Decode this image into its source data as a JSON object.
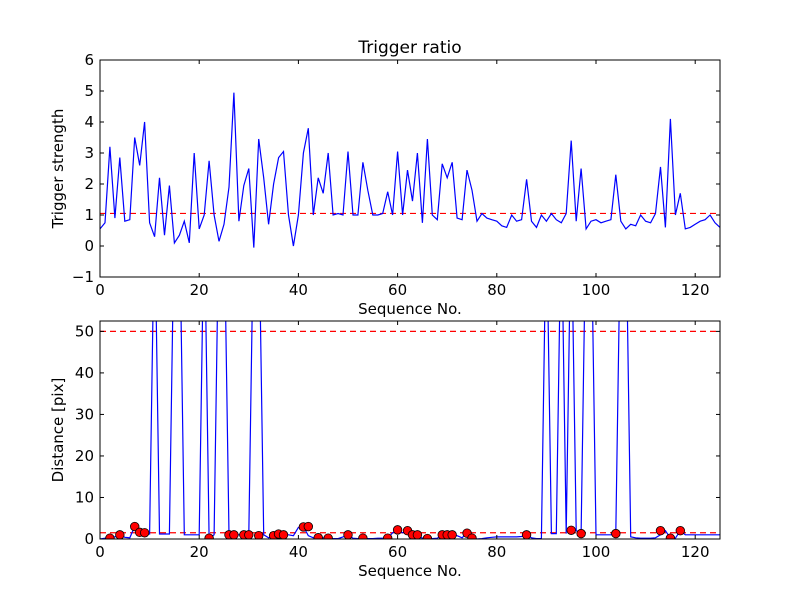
{
  "chart_data": [
    {
      "type": "line",
      "title": "Trigger ratio",
      "xlabel": "Sequence No.",
      "ylabel": "Trigger strength",
      "xlim": [
        0,
        125
      ],
      "ylim": [
        -1,
        6
      ],
      "xticks": [
        0,
        20,
        40,
        60,
        80,
        100,
        120
      ],
      "yticks": [
        -1,
        0,
        1,
        2,
        3,
        4,
        5,
        6
      ],
      "ytick_labels": [
        "−1",
        "0",
        "1",
        "2",
        "3",
        "4",
        "5",
        "6"
      ],
      "grid": false,
      "colors": {
        "series": "#0000ff",
        "reference": "#ff0000"
      },
      "reference_lines": [
        {
          "y": 1.05,
          "style": "dashed",
          "color": "#ff0000"
        }
      ],
      "series": [
        {
          "x": [
            0,
            1,
            2,
            3,
            4,
            5,
            6,
            7,
            8,
            9,
            10,
            11,
            12,
            13,
            14,
            15,
            16,
            17,
            18,
            19,
            20,
            21,
            22,
            23,
            24,
            25,
            26,
            27,
            28,
            29,
            30,
            31,
            32,
            33,
            34,
            35,
            36,
            37,
            38,
            39,
            40,
            41,
            42,
            43,
            44,
            45,
            46,
            47,
            48,
            49,
            50,
            51,
            52,
            53,
            54,
            55,
            56,
            57,
            58,
            59,
            60,
            61,
            62,
            63,
            64,
            65,
            66,
            67,
            68,
            69,
            70,
            71,
            72,
            73,
            74,
            75,
            76,
            77,
            78,
            79,
            80,
            81,
            82,
            83,
            84,
            85,
            86,
            87,
            88,
            89,
            90,
            91,
            92,
            93,
            94,
            95,
            96,
            97,
            98,
            99,
            100,
            101,
            102,
            103,
            104,
            105,
            106,
            107,
            108,
            109,
            110,
            111,
            112,
            113,
            114,
            115,
            116,
            117,
            118,
            119,
            120,
            121,
            122,
            123,
            124,
            125
          ],
          "values": [
            0.55,
            0.75,
            3.2,
            0.9,
            2.85,
            0.8,
            0.85,
            3.5,
            2.6,
            4.0,
            0.75,
            0.3,
            2.2,
            0.35,
            1.95,
            0.1,
            0.35,
            0.8,
            0.1,
            3.0,
            0.55,
            1.0,
            2.75,
            1.0,
            0.15,
            0.7,
            1.9,
            4.95,
            0.8,
            1.95,
            2.5,
            -0.05,
            3.45,
            2.2,
            0.7,
            2.0,
            2.85,
            3.05,
            1.0,
            0.0,
            1.0,
            3.0,
            3.8,
            1.0,
            2.2,
            1.7,
            3.0,
            1.0,
            1.05,
            1.0,
            3.05,
            1.0,
            1.0,
            2.7,
            1.8,
            1.0,
            1.0,
            1.05,
            1.75,
            1.0,
            3.05,
            1.0,
            2.45,
            1.45,
            3.0,
            0.75,
            3.45,
            1.0,
            0.85,
            2.65,
            2.2,
            2.7,
            0.9,
            0.85,
            2.45,
            1.8,
            0.8,
            1.05,
            0.9,
            0.85,
            0.8,
            0.65,
            0.6,
            1.0,
            0.8,
            0.85,
            2.15,
            0.8,
            0.6,
            1.0,
            0.8,
            1.05,
            0.85,
            0.75,
            1.05,
            3.4,
            0.8,
            2.5,
            0.55,
            0.8,
            0.85,
            0.75,
            0.8,
            0.85,
            2.3,
            0.8,
            0.55,
            0.7,
            0.65,
            1.0,
            0.8,
            0.75,
            1.05,
            2.55,
            0.6,
            4.1,
            1.0,
            1.7,
            0.55,
            0.6,
            0.7,
            0.8,
            0.85,
            1.0,
            0.75,
            0.6
          ]
        }
      ]
    },
    {
      "type": "line",
      "title": "",
      "xlabel": "Sequence No.",
      "ylabel": "Distance [pix]",
      "xlim": [
        0,
        125
      ],
      "ylim": [
        0,
        52.5
      ],
      "xticks": [
        0,
        20,
        40,
        60,
        80,
        100,
        120
      ],
      "yticks": [
        0,
        10,
        20,
        30,
        40,
        50
      ],
      "grid": false,
      "colors": {
        "series": "#0000ff",
        "reference": "#ff0000",
        "markers": "#ff0000"
      },
      "reference_lines": [
        {
          "y": 50,
          "style": "dashed",
          "color": "#ff0000"
        },
        {
          "y": 1.5,
          "style": "dashed",
          "color": "#ff0000"
        }
      ],
      "series": [
        {
          "x": [
            0,
            1,
            2,
            3,
            4,
            5,
            6,
            7,
            8,
            9,
            10,
            11,
            12,
            13,
            14,
            15,
            16,
            17,
            18,
            19,
            20,
            21,
            22,
            23,
            24,
            25,
            26,
            27,
            28,
            29,
            30,
            31,
            32,
            33,
            34,
            35,
            36,
            37,
            38,
            39,
            40,
            41,
            42,
            43,
            44,
            45,
            46,
            47,
            48,
            49,
            50,
            51,
            52,
            53,
            54,
            55,
            56,
            57,
            58,
            59,
            60,
            61,
            62,
            63,
            64,
            65,
            66,
            67,
            68,
            69,
            70,
            71,
            72,
            73,
            74,
            75,
            76,
            77,
            78,
            79,
            80,
            81,
            82,
            83,
            84,
            85,
            86,
            87,
            88,
            89,
            90,
            91,
            92,
            93,
            94,
            95,
            96,
            97,
            98,
            99,
            100,
            101,
            102,
            103,
            104,
            105,
            106,
            107,
            108,
            109,
            110,
            111,
            112,
            113,
            114,
            115,
            116,
            117,
            118,
            119,
            120,
            121,
            122,
            123,
            124,
            125
          ],
          "values": [
            0,
            0.2,
            0.3,
            0.5,
            1.0,
            0.4,
            0.3,
            3.0,
            1.5,
            1.4,
            1.2,
            80,
            1.2,
            1.2,
            1.2,
            80,
            80,
            1.0,
            1.0,
            1.0,
            1.0,
            80,
            0.2,
            1.0,
            80,
            80,
            1.0,
            1.0,
            1.0,
            0.9,
            1.0,
            80,
            80,
            1.0,
            0.3,
            0.8,
            1.0,
            1.0,
            1.0,
            0.8,
            2.8,
            3.0,
            0.8,
            0.3,
            0.5,
            0.3,
            0.2,
            0.1,
            0.1,
            0.5,
            1.0,
            0.2,
            0.1,
            0.2,
            0.1,
            0.1,
            0.2,
            0.2,
            0.2,
            1.5,
            2.2,
            1.5,
            2.0,
            1.0,
            0.8,
            0.2,
            0.1,
            0.1,
            0.2,
            1.0,
            1.0,
            1.0,
            0.8,
            0.3,
            1.5,
            0.1,
            0.0,
            0.1,
            0.3,
            0.4,
            0.5,
            0.5,
            0.5,
            0.5,
            0.5,
            0.6,
            1.0,
            0.3,
            0.1,
            0.1,
            80,
            1.3,
            1.3,
            80,
            1.3,
            80,
            2.0,
            1.3,
            80,
            80,
            1.0,
            1.0,
            1.0,
            1.0,
            1.5,
            80,
            80,
            0.5,
            0.3,
            0.2,
            0.2,
            0.2,
            0.3,
            1.0,
            2.0,
            0.2,
            0.2,
            2.0,
            1.0,
            1.0,
            1.0,
            1.0,
            1.0,
            1.0,
            1.0,
            1.0
          ]
        }
      ],
      "markers": {
        "x": [
          2,
          4,
          7,
          8,
          9,
          22,
          26,
          27,
          29,
          30,
          32,
          35,
          36,
          37,
          41,
          42,
          44,
          46,
          50,
          53,
          58,
          60,
          62,
          63,
          64,
          66,
          69,
          70,
          71,
          74,
          75,
          86,
          95,
          97,
          104,
          113,
          115,
          117
        ],
        "values": [
          0.2,
          1.0,
          3.0,
          1.6,
          1.5,
          0.2,
          1.0,
          1.0,
          1.0,
          1.0,
          0.8,
          0.8,
          1.2,
          1.0,
          2.9,
          3.0,
          0.3,
          0.2,
          1.0,
          0.2,
          0.2,
          2.2,
          2.0,
          1.0,
          1.0,
          0.1,
          1.0,
          1.0,
          1.0,
          1.4,
          0.2,
          1.0,
          2.1,
          1.3,
          1.3,
          2.0,
          0.2,
          2.0
        ]
      }
    }
  ]
}
